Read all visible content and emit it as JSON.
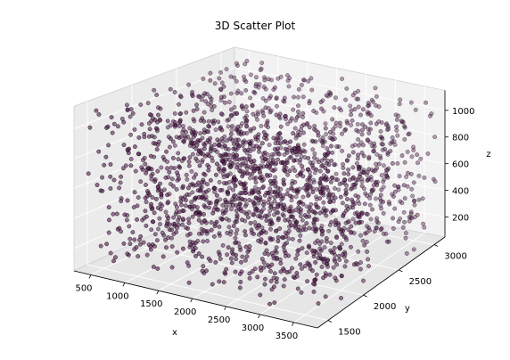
{
  "chart_data": {
    "type": "scatter",
    "projection": "3d",
    "title": "3D Scatter Plot",
    "xlabel": "x",
    "ylabel": "y",
    "zlabel": "z",
    "xlim": [
      250,
      3850
    ],
    "ylim": [
      1350,
      3150
    ],
    "zlim": [
      50,
      1150
    ],
    "xticks": [
      500,
      1000,
      1500,
      2000,
      2500,
      3000,
      3500
    ],
    "yticks": [
      1500,
      2000,
      2500,
      3000
    ],
    "zticks": [
      200,
      400,
      600,
      800,
      1000
    ],
    "grid": true,
    "marker_color": "#5a1f55",
    "marker_alpha": 0.65,
    "edge_color": "#000000",
    "point_count": 2000,
    "distribution": "uniform random",
    "x_range": [
      300,
      3800
    ],
    "y_range": [
      1400,
      3100
    ],
    "z_range": [
      80,
      1120
    ]
  }
}
